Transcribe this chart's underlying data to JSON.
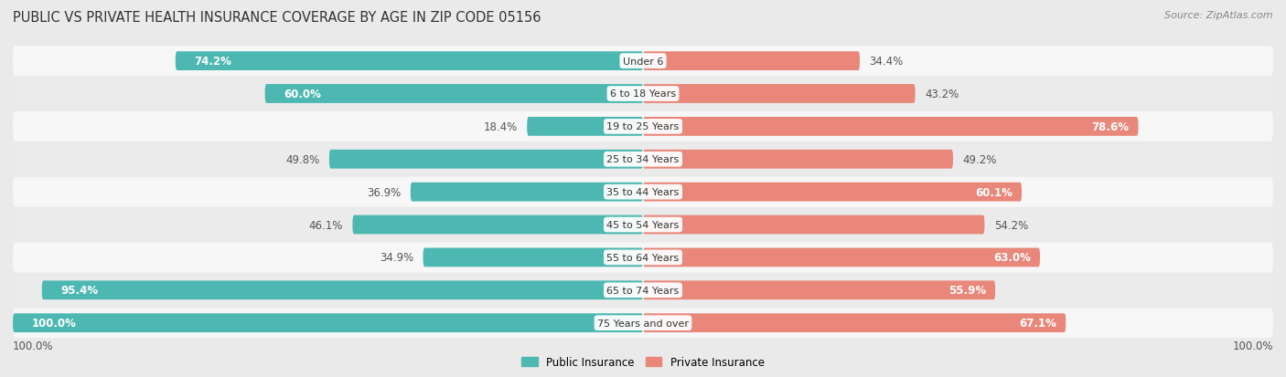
{
  "title": "Public vs Private Health Insurance Coverage by Age in Zip Code 05156",
  "source": "Source: ZipAtlas.com",
  "categories": [
    "Under 6",
    "6 to 18 Years",
    "19 to 25 Years",
    "25 to 34 Years",
    "35 to 44 Years",
    "45 to 54 Years",
    "55 to 64 Years",
    "65 to 74 Years",
    "75 Years and over"
  ],
  "public_values": [
    74.2,
    60.0,
    18.4,
    49.8,
    36.9,
    46.1,
    34.9,
    95.4,
    100.0
  ],
  "private_values": [
    34.4,
    43.2,
    78.6,
    49.2,
    60.1,
    54.2,
    63.0,
    55.9,
    67.1
  ],
  "public_color": "#4DB8B2",
  "private_color": "#E8877A",
  "bg_color": "#EAEAEA",
  "row_bg_light": "#F7F7F7",
  "row_bg_dark": "#EBEBEB",
  "max_value": 100.0,
  "bar_height": 0.58,
  "title_fontsize": 10.5,
  "label_fontsize": 8.5,
  "category_fontsize": 8.0,
  "legend_fontsize": 8.5,
  "source_fontsize": 8
}
